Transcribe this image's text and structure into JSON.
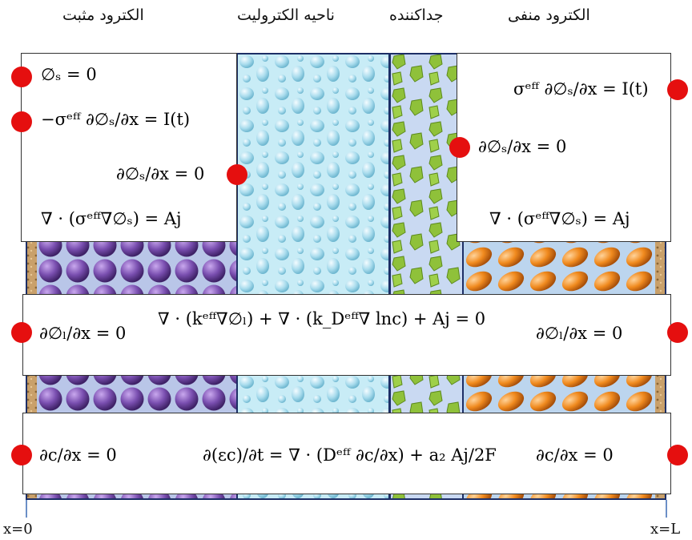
{
  "headers": {
    "positive_electrode": "الکترود مثبت",
    "electrolyte_region": "ناحیه الکترولیت",
    "separator": "جداکننده",
    "negative_electrode": "الکترود منفی"
  },
  "axis": {
    "left": "x=0",
    "right": "x=L"
  },
  "top_left_box": {
    "eq1": "∅ₛ = 0",
    "eq2": "−σᵉᶠᶠ ∂∅ₛ/∂x = I(t)",
    "eq3": "∂∅ₛ/∂x = 0",
    "eq4": "∇ · (σᵉᶠᶠ∇∅ₛ) = Aj"
  },
  "top_right_box": {
    "eq1": "σᵉᶠᶠ ∂∅ₛ/∂x = I(t)",
    "eq2": "∂∅ₛ/∂x = 0",
    "eq3": "∇ · (σᵉᶠᶠ∇∅ₛ) = Aj"
  },
  "middle_box": {
    "left_bc": "∂∅ₗ/∂x = 0",
    "main": "∇ · (kᵉᶠᶠ∇∅ₗ) + ∇ · (k_Dᵉᶠᶠ∇ lnc) + Aj = 0",
    "right_bc": "∂∅ₗ/∂x = 0"
  },
  "bottom_box": {
    "left_bc": "∂c/∂x = 0",
    "main": "∂(εc)/∂t = ∇ · (Dᵉᶠᶠ ∂c/∂x) + a₂ Aj/2F",
    "right_bc": "∂c/∂x = 0"
  },
  "colors": {
    "boundary_dot": "#e50f0f",
    "positive_particles": "#7a4fb0",
    "negative_particles": "#f08a1e",
    "separator_particles": "#8fc13a",
    "electrolyte": "#bfe6f2"
  }
}
